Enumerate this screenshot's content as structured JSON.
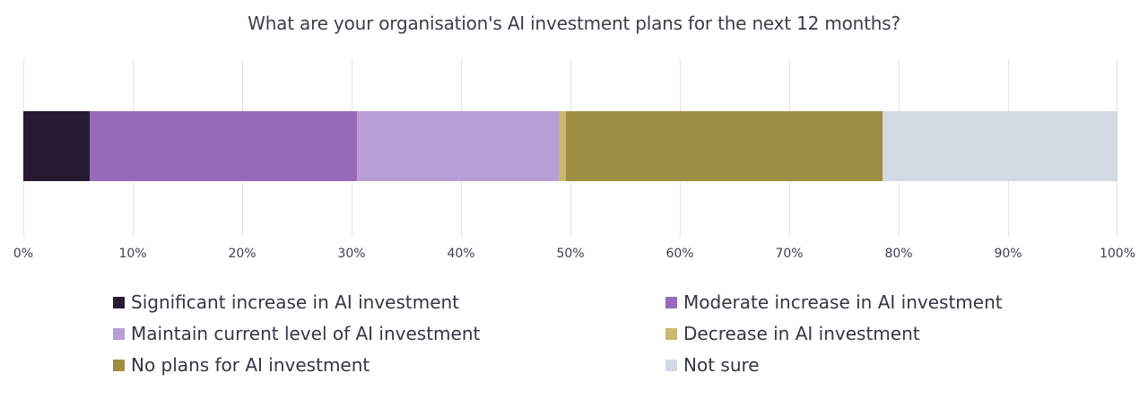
{
  "chart_data": {
    "type": "bar",
    "orientation": "horizontal",
    "stacked": true,
    "title": "What are your organisation's AI investment plans for the next 12 months?",
    "xlabel": "",
    "ylabel": "",
    "xlim": [
      0,
      100
    ],
    "x_ticks": [
      "0%",
      "10%",
      "20%",
      "30%",
      "40%",
      "50%",
      "60%",
      "70%",
      "80%",
      "90%",
      "100%"
    ],
    "grid": true,
    "legend_position": "bottom",
    "categories": [
      ""
    ],
    "series": [
      {
        "name": "Significant increase in AI investment",
        "values": [
          6.1
        ],
        "color": "#261a33"
      },
      {
        "name": "Moderate increase in AI investment",
        "values": [
          24.4
        ],
        "color": "#956bb9"
      },
      {
        "name": "Maintain current level of AI investment",
        "values": [
          18.4
        ],
        "color": "#b99ed6"
      },
      {
        "name": "Decrease in AI investment",
        "values": [
          0.7
        ],
        "color": "#cbb870"
      },
      {
        "name": "No plans for AI investment",
        "values": [
          28.9
        ],
        "color": "#9e8f43"
      },
      {
        "name": "Not sure",
        "values": [
          21.5
        ],
        "color": "#d3d9e2"
      }
    ]
  },
  "legend": {
    "items": [
      {
        "label": "Significant increase in AI investment",
        "color": "#261a33"
      },
      {
        "label": "Moderate increase in AI investment",
        "color": "#956bb9"
      },
      {
        "label": "Maintain current level of AI investment",
        "color": "#b99ed6"
      },
      {
        "label": "Decrease in AI investment",
        "color": "#cbb870"
      },
      {
        "label": "No plans for AI investment",
        "color": "#9e8f43"
      },
      {
        "label": "Not sure",
        "color": "#d3d9e2"
      }
    ]
  }
}
